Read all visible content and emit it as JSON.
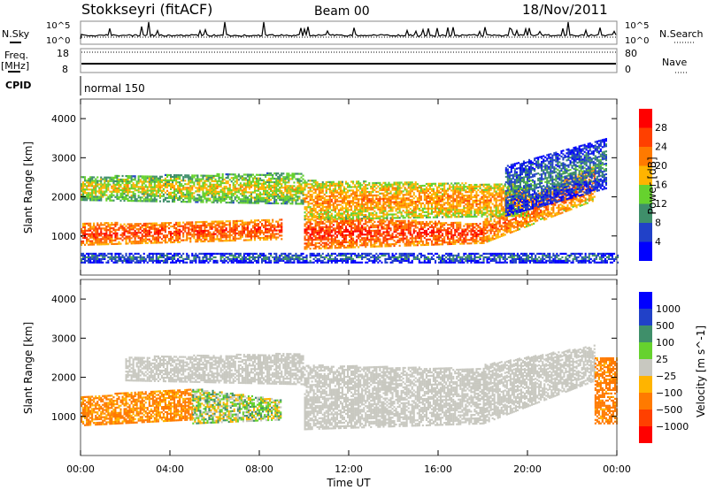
{
  "header": {
    "station": "Stokkseyri (fitACF)",
    "beam": "Beam 00",
    "date": "18/Nov/2011"
  },
  "status_panels": {
    "nsky_label": "N.Sky",
    "nsearch_label": "N.Search",
    "nsky_ticks": [
      "10^5",
      "10^0"
    ],
    "freq_label_1": "Freq.",
    "freq_label_2": "[MHz]",
    "freq_ticks": [
      "18",
      "8"
    ],
    "nave_label": "Nave",
    "nave_ticks": [
      "80",
      "0"
    ],
    "cpid_label": "CPID",
    "cpid_value": "normal 150"
  },
  "chart_data": [
    {
      "type": "heatmap",
      "title": "Power",
      "xlabel": "Time UT",
      "ylabel": "Slant Range [km]",
      "xlim": [
        0,
        24
      ],
      "ylim": [
        0,
        4500
      ],
      "yticks": [
        "1000",
        "2000",
        "3000",
        "4000"
      ],
      "colorbar": {
        "label": "Power [dB]",
        "ticks": [
          "28",
          "24",
          "20",
          "16",
          "12",
          "8",
          "4"
        ],
        "colors": [
          "#ff0000",
          "#ff4000",
          "#ff7a00",
          "#ffb400",
          "#66d22e",
          "#3f8f6a",
          "#2141c8",
          "#0000ff"
        ]
      },
      "regions": [
        {
          "t": [
            0,
            9
          ],
          "r_low": [
            750,
            900
          ],
          "r_high": [
            1300,
            1400
          ],
          "power": 27
        },
        {
          "t": [
            0,
            10
          ],
          "r_low": [
            1900,
            1800
          ],
          "r_high": [
            2500,
            2600
          ],
          "power": 18
        },
        {
          "t": [
            10,
            18
          ],
          "r_low": [
            650,
            800
          ],
          "r_high": [
            1500,
            1300
          ],
          "power": 28
        },
        {
          "t": [
            18,
            23
          ],
          "r_low": [
            800,
            1900
          ],
          "r_high": [
            1400,
            2800
          ],
          "power": 25
        },
        {
          "t": [
            10,
            20
          ],
          "r_low": [
            1400,
            1500
          ],
          "r_high": [
            2400,
            2300
          ],
          "power": 22
        },
        {
          "t": [
            19,
            23.5
          ],
          "r_low": [
            1500,
            2200
          ],
          "r_high": [
            2800,
            3500
          ],
          "power": 10
        },
        {
          "t": [
            0,
            24
          ],
          "r_low": [
            300,
            300
          ],
          "r_high": [
            550,
            550
          ],
          "power": 9
        }
      ]
    },
    {
      "type": "heatmap",
      "title": "Velocity",
      "xlabel": "Time UT",
      "ylabel": "Slant Range [km]",
      "xlim": [
        0,
        24
      ],
      "ylim": [
        0,
        4500
      ],
      "xticks": [
        "00:00",
        "04:00",
        "08:00",
        "12:00",
        "16:00",
        "20:00",
        "00:00"
      ],
      "yticks": [
        "1000",
        "2000",
        "3000",
        "4000"
      ],
      "colorbar": {
        "label": "Velocity [m s^-1]",
        "ticks": [
          "1000",
          "500",
          "100",
          "25",
          "-25",
          "-100",
          "-500",
          "-1000"
        ],
        "colors": [
          "#0000ff",
          "#2141c8",
          "#3f8f6a",
          "#66d22e",
          "#c8c8c0",
          "#ffb400",
          "#ff7a00",
          "#ff4000",
          "#ff0000"
        ]
      },
      "regions": [
        {
          "t": [
            0,
            5
          ],
          "r_low": [
            750,
            900
          ],
          "r_high": [
            1500,
            1700
          ],
          "velocity": -150
        },
        {
          "t": [
            5,
            9
          ],
          "r_low": [
            800,
            900
          ],
          "r_high": [
            1700,
            1400
          ],
          "velocity": 40
        },
        {
          "t": [
            2,
            10
          ],
          "r_low": [
            1900,
            1800
          ],
          "r_high": [
            2500,
            2600
          ],
          "velocity": 0
        },
        {
          "t": [
            10,
            18
          ],
          "r_low": [
            650,
            800
          ],
          "r_high": [
            2300,
            2200
          ],
          "velocity": 0
        },
        {
          "t": [
            18,
            23
          ],
          "r_low": [
            800,
            1900
          ],
          "r_high": [
            2300,
            2800
          ],
          "velocity": 0
        },
        {
          "t": [
            23,
            24
          ],
          "r_low": [
            800,
            800
          ],
          "r_high": [
            2500,
            2500
          ],
          "velocity": -200
        }
      ]
    }
  ],
  "xaxis_label": "Time UT"
}
